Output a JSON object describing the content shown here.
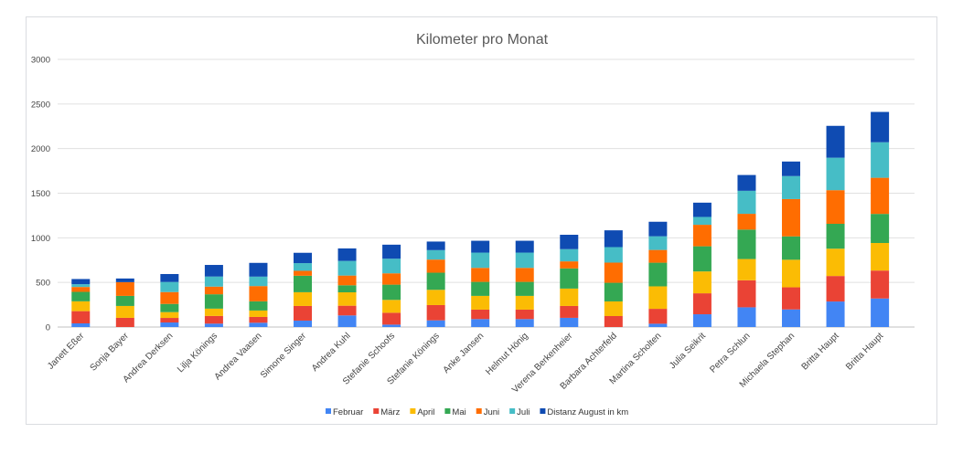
{
  "chart_data": {
    "type": "bar",
    "stacked": true,
    "title": "Kilometer pro Monat",
    "xlabel": "",
    "ylabel": "",
    "ylim": [
      0,
      3000
    ],
    "yticks": [
      0,
      500,
      1000,
      1500,
      2000,
      2500,
      3000
    ],
    "grid": true,
    "legend_position": "bottom",
    "categories": [
      "Janett Eßer",
      "Sonja Bayer",
      "Andrea Derksen",
      "Lilja Könings",
      "Andrea Vaasen",
      "Simone Singer",
      "Andrea Kuhl",
      "Stefanie Schoofs",
      "Stefanie Könings",
      "Anke Jansen",
      "Helmut Hönig",
      "Verena Berkenheier",
      "Barbara Achterfeld",
      "Martina Scholten",
      "Julia Seikrit",
      "Petra Schlun",
      "Michaela Stephan",
      "Britta Haupt",
      "Britta Haupt"
    ],
    "series": [
      {
        "name": "Februar",
        "color": "#4285f4",
        "values": [
          41,
          0,
          51,
          38,
          48,
          72,
          130,
          27,
          75,
          89,
          89,
          103,
          0,
          37,
          143,
          221,
          197,
          286,
          320
        ]
      },
      {
        "name": "März",
        "color": "#ea4335",
        "values": [
          137,
          103,
          51,
          86,
          65,
          164,
          109,
          133,
          171,
          106,
          106,
          133,
          123,
          167,
          235,
          303,
          248,
          286,
          313
        ]
      },
      {
        "name": "April",
        "color": "#fbbc04",
        "values": [
          110,
          133,
          65,
          82,
          72,
          154,
          150,
          144,
          171,
          154,
          154,
          195,
          164,
          252,
          245,
          238,
          309,
          306,
          309
        ]
      },
      {
        "name": "Mai",
        "color": "#34a853",
        "values": [
          106,
          113,
          92,
          161,
          103,
          185,
          79,
          171,
          192,
          157,
          157,
          226,
          209,
          265,
          282,
          330,
          262,
          279,
          326
        ]
      },
      {
        "name": "Juni",
        "color": "#ff6d01",
        "values": [
          55,
          154,
          133,
          86,
          171,
          55,
          109,
          127,
          147,
          157,
          157,
          79,
          226,
          143,
          241,
          177,
          418,
          377,
          405
        ]
      },
      {
        "name": "Juli",
        "color": "#46bdc6",
        "values": [
          31,
          0,
          113,
          113,
          106,
          86,
          164,
          164,
          106,
          171,
          171,
          137,
          174,
          153,
          88,
          258,
          258,
          364,
          398
        ]
      },
      {
        "name": "Distanz August in km",
        "color": "#0f4bb2",
        "values": [
          58,
          41,
          89,
          130,
          154,
          116,
          140,
          157,
          96,
          133,
          133,
          161,
          188,
          163,
          160,
          177,
          163,
          357,
          340
        ]
      }
    ]
  }
}
